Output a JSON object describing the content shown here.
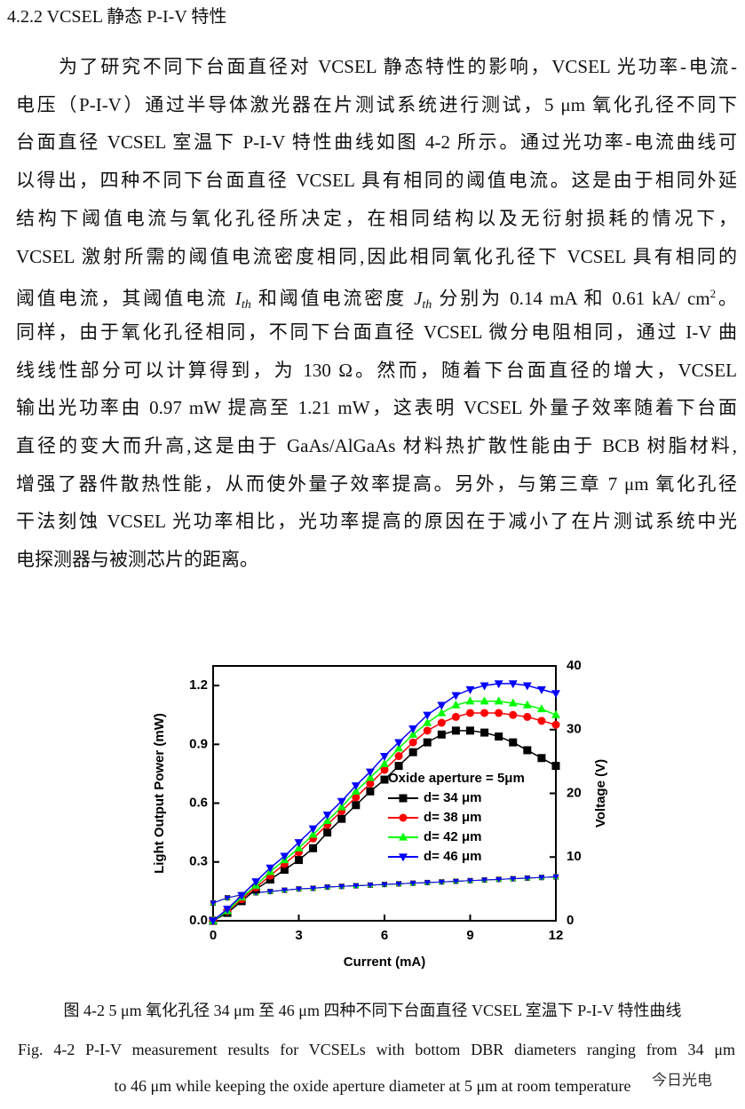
{
  "header": {
    "title": "4.2.2 VCSEL 静态 P-I-V 特性"
  },
  "paragraph": {
    "lines": [
      "为了研究不同下台面直径对 VCSEL 静态特性的影响，VCSEL 光功率-电流-",
      "电压（P-I-V）通过半导体激光器在片测试系统进行测试，5 μm 氧化孔径不同下",
      "台面直径 VCSEL  室温下 P-I-V 特性曲线如图 4-2 所示。通过光功率-电流曲线可",
      "以得出，四种不同下台面直径 VCSEL 具有相同的阈值电流。这是由于相同外延",
      "结构下阈值电流与氧化孔径所决定，在相同结构以及无衍射损耗的情况下，",
      "VCSEL 激射所需的阈值电流密度相同,因此相同氧化孔径下 VCSEL 具有相同的",
      [
        "阈值电流，其阈值电流 ",
        "I",
        "th",
        " 和阈值电流密度 ",
        "J",
        "th",
        " 分别为 0.14 mA 和 0.61 kA/ cm",
        "2",
        "。"
      ],
      "同样，由于氧化孔径相同，不同下台面直径 VCSEL 微分电阻相同，通过 I-V 曲",
      "线线性部分可以计算得到，为 130 Ω。然而，随着下台面直径的增大，VCSEL",
      "输出光功率由 0.97 mW 提高至 1.21 mW，这表明 VCSEL 外量子效率随着下台面",
      "直径的变大而升高,这是由于 GaAs/AlGaAs 材料热扩散性能由于 BCB 树脂材料,",
      "增强了器件散热性能，从而使外量子效率提高。另外，与第三章 7 μm 氧化孔径",
      "干法刻蚀 VCSEL 光功率相比，光功率提高的原因在于减小了在片测试系统中光",
      "电探测器与被测芯片的距离。"
    ]
  },
  "chart_data": {
    "type": "line",
    "x_label": "Current (mA)",
    "y_label": "Light Output Power (mW)",
    "y2_label": "Voltage (V)",
    "legend_title": "Oxide aperture = 5μm",
    "xlim": [
      0,
      12
    ],
    "xticks": [
      0,
      3,
      6,
      9,
      12
    ],
    "ylim": [
      0,
      1.3
    ],
    "yticks": [
      {
        "value": 0,
        "label": "0.0"
      },
      0.3,
      0.6,
      0.9,
      1.2
    ],
    "y2lim": [
      0,
      40
    ],
    "y2ticks": [
      0,
      10,
      20,
      30,
      40
    ],
    "x": [
      0,
      0.5,
      1,
      1.5,
      2,
      2.5,
      3,
      3.5,
      4,
      4.5,
      5,
      5.5,
      6,
      6.5,
      7,
      7.5,
      8,
      8.5,
      9,
      9.5,
      10,
      10.5,
      11,
      11.5,
      12
    ],
    "series": [
      {
        "name": "d= 34 μm",
        "color": "#000000",
        "marker": "square",
        "values": [
          0,
          0.04,
          0.1,
          0.16,
          0.21,
          0.26,
          0.31,
          0.37,
          0.45,
          0.52,
          0.59,
          0.66,
          0.72,
          0.79,
          0.86,
          0.91,
          0.95,
          0.97,
          0.97,
          0.96,
          0.94,
          0.91,
          0.87,
          0.83,
          0.79
        ],
        "voltage": [
          2.8,
          3.6,
          4.1,
          4.4,
          4.6,
          4.8,
          5.0,
          5.1,
          5.3,
          5.4,
          5.5,
          5.6,
          5.7,
          5.8,
          5.9,
          6.0,
          6.1,
          6.2,
          6.3,
          6.4,
          6.5,
          6.6,
          6.7,
          6.8,
          6.9
        ]
      },
      {
        "name": "d= 38 μm",
        "color": "#ff0000",
        "marker": "circle",
        "values": [
          0,
          0.05,
          0.11,
          0.17,
          0.23,
          0.29,
          0.35,
          0.42,
          0.49,
          0.56,
          0.63,
          0.7,
          0.77,
          0.84,
          0.91,
          0.97,
          1.01,
          1.04,
          1.06,
          1.06,
          1.06,
          1.05,
          1.04,
          1.02,
          1.0
        ],
        "voltage": [
          2.8,
          3.6,
          4.1,
          4.4,
          4.6,
          4.8,
          5.0,
          5.1,
          5.3,
          5.4,
          5.5,
          5.6,
          5.7,
          5.8,
          5.9,
          6.0,
          6.1,
          6.2,
          6.3,
          6.4,
          6.5,
          6.6,
          6.7,
          6.8,
          6.9
        ]
      },
      {
        "name": "d= 42 μm",
        "color": "#00ff00",
        "marker": "triangle-up",
        "values": [
          0,
          0.05,
          0.12,
          0.18,
          0.25,
          0.31,
          0.37,
          0.44,
          0.51,
          0.58,
          0.66,
          0.73,
          0.8,
          0.88,
          0.95,
          1.01,
          1.06,
          1.1,
          1.12,
          1.12,
          1.12,
          1.11,
          1.1,
          1.08,
          1.05
        ],
        "voltage": [
          2.8,
          3.6,
          4.1,
          4.4,
          4.6,
          4.8,
          5.0,
          5.1,
          5.3,
          5.4,
          5.5,
          5.6,
          5.7,
          5.8,
          5.9,
          6.0,
          6.1,
          6.2,
          6.3,
          6.4,
          6.5,
          6.6,
          6.7,
          6.8,
          6.9
        ]
      },
      {
        "name": "d= 46 μm",
        "color": "#0000ff",
        "marker": "triangle-down",
        "values": [
          0,
          0.06,
          0.13,
          0.2,
          0.27,
          0.33,
          0.4,
          0.47,
          0.54,
          0.61,
          0.69,
          0.76,
          0.84,
          0.91,
          0.98,
          1.05,
          1.1,
          1.15,
          1.18,
          1.2,
          1.21,
          1.21,
          1.2,
          1.18,
          1.16
        ],
        "voltage": [
          2.8,
          3.6,
          4.1,
          4.4,
          4.6,
          4.8,
          5.0,
          5.1,
          5.3,
          5.4,
          5.5,
          5.6,
          5.7,
          5.8,
          5.9,
          6.0,
          6.1,
          6.2,
          6.3,
          6.4,
          6.5,
          6.6,
          6.7,
          6.8,
          6.9
        ]
      }
    ]
  },
  "caption": {
    "zh": "图 4-2 5 μm 氧化孔径 34 μm 至 46 μm 四种不同下台面直径 VCSEL 室温下 P-I-V 特性曲线",
    "en": [
      "Fig. 4-2 P-I-V measurement results for VCSELs with bottom DBR diameters ranging from 34 μm",
      "to 46 μm while keeping the oxide aperture diameter at 5 μm at room temperature"
    ]
  },
  "watermark": "今日光电"
}
